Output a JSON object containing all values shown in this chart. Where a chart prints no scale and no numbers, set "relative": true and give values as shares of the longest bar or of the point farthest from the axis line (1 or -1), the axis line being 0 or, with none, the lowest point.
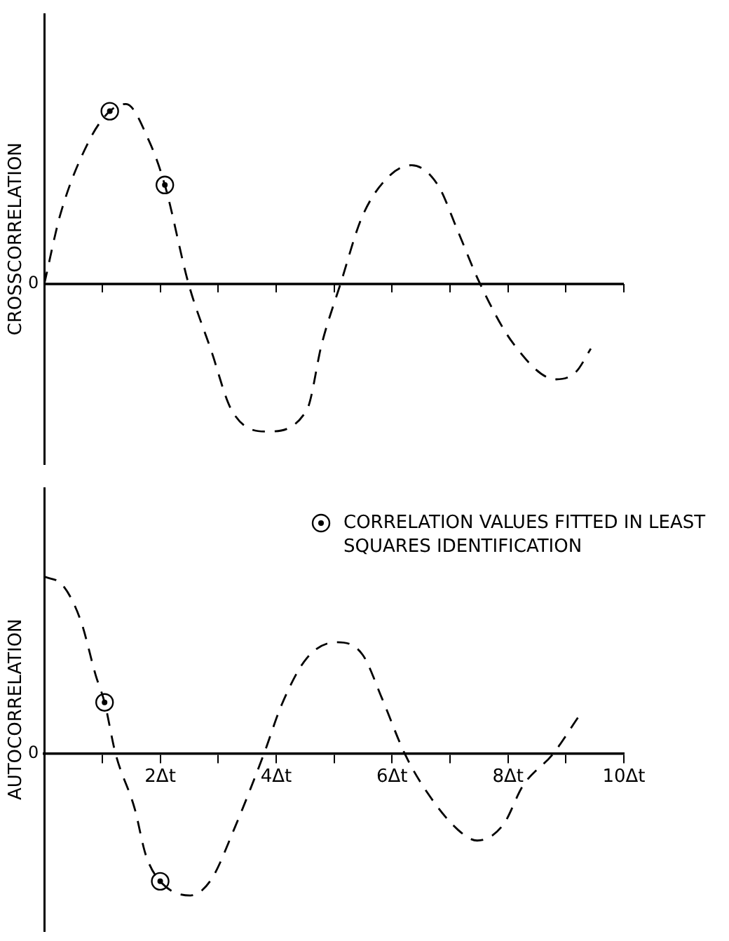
{
  "chart_data": [
    {
      "type": "line",
      "ylabel": "CROSSCORRELATION",
      "relative": true,
      "xlim": [
        0,
        10
      ],
      "tick_labels": false,
      "legend": false,
      "xticks": [
        {
          "value": 1,
          "label": null
        },
        {
          "value": 2,
          "label": null
        },
        {
          "value": 3,
          "label": null
        },
        {
          "value": 4,
          "label": null
        },
        {
          "value": 5,
          "label": null
        },
        {
          "value": 6,
          "label": null
        },
        {
          "value": 7,
          "label": null
        },
        {
          "value": 8,
          "label": null
        },
        {
          "value": 9,
          "label": null
        },
        {
          "value": 10,
          "label": null
        }
      ],
      "ref_lines": [
        {
          "axis": "y",
          "value": 0,
          "label": "0"
        }
      ],
      "series": [
        {
          "type": "line",
          "color": "#000000",
          "line_style": "dashed",
          "marker": "none",
          "x": [
            0,
            0.28,
            0.78,
            1.13,
            1.41,
            1.8,
            2.08,
            2.49,
            2.88,
            3.23,
            3.85,
            4.53,
            4.79,
            5.11,
            5.48,
            5.92,
            6.34,
            6.79,
            7.14,
            7.52,
            8.09,
            8.83,
            9.17,
            9.43
          ],
          "values": [
            0,
            0.39,
            0.8,
            0.96,
            1,
            0.8,
            0.55,
            0,
            -0.37,
            -0.7,
            -0.82,
            -0.7,
            -0.33,
            0,
            0.37,
            0.59,
            0.66,
            0.55,
            0.29,
            0,
            -0.33,
            -0.53,
            -0.49,
            -0.36
          ]
        },
        {
          "type": "scatter",
          "color": "#000000",
          "marker": "circle",
          "x": [
            1.13,
            2.08
          ],
          "values": [
            0.96,
            0.55
          ]
        }
      ]
    },
    {
      "type": "line",
      "ylabel": "AUTOCORRELATION",
      "relative": true,
      "xlim": [
        0,
        10
      ],
      "tick_labels": "x",
      "legend": "top right",
      "annotations": [
        "0"
      ],
      "xticks": [
        {
          "value": 1,
          "label": null
        },
        {
          "value": 2,
          "label": "2Δt"
        },
        {
          "value": 3,
          "label": null
        },
        {
          "value": 4,
          "label": "4Δt"
        },
        {
          "value": 5,
          "label": null
        },
        {
          "value": 6,
          "label": "6Δt"
        },
        {
          "value": 7,
          "label": null
        },
        {
          "value": 8,
          "label": "8Δt"
        },
        {
          "value": 9,
          "label": null
        },
        {
          "value": 10,
          "label": "10Δt"
        }
      ],
      "series": [
        {
          "type": "line",
          "color": "#000000",
          "line_style": "dashed",
          "marker": "none",
          "x": [
            0,
            0.32,
            0.63,
            0.89,
            1.04,
            1.23,
            1.56,
            1.75,
            2.0,
            2.52,
            2.88,
            3.27,
            3.79,
            4.1,
            4.53,
            5.05,
            5.49,
            5.83,
            6.22,
            6.61,
            7.14,
            7.47,
            7.92,
            8.26,
            8.78,
            9.22
          ],
          "values": [
            1,
            0.95,
            0.75,
            0.44,
            0.29,
            0,
            -0.31,
            -0.57,
            -0.72,
            -0.8,
            -0.71,
            -0.43,
            0,
            0.28,
            0.54,
            0.63,
            0.56,
            0.31,
            0,
            -0.22,
            -0.43,
            -0.49,
            -0.4,
            -0.18,
            0,
            0.21
          ]
        },
        {
          "type": "scatter",
          "name": "CORRELATION VALUES FITTED IN LEAST SQUARES IDENTIFICATION",
          "color": "#000000",
          "marker": "circle",
          "x": [
            1.04,
            2.0
          ],
          "values": [
            0.29,
            -0.72
          ]
        }
      ]
    }
  ]
}
